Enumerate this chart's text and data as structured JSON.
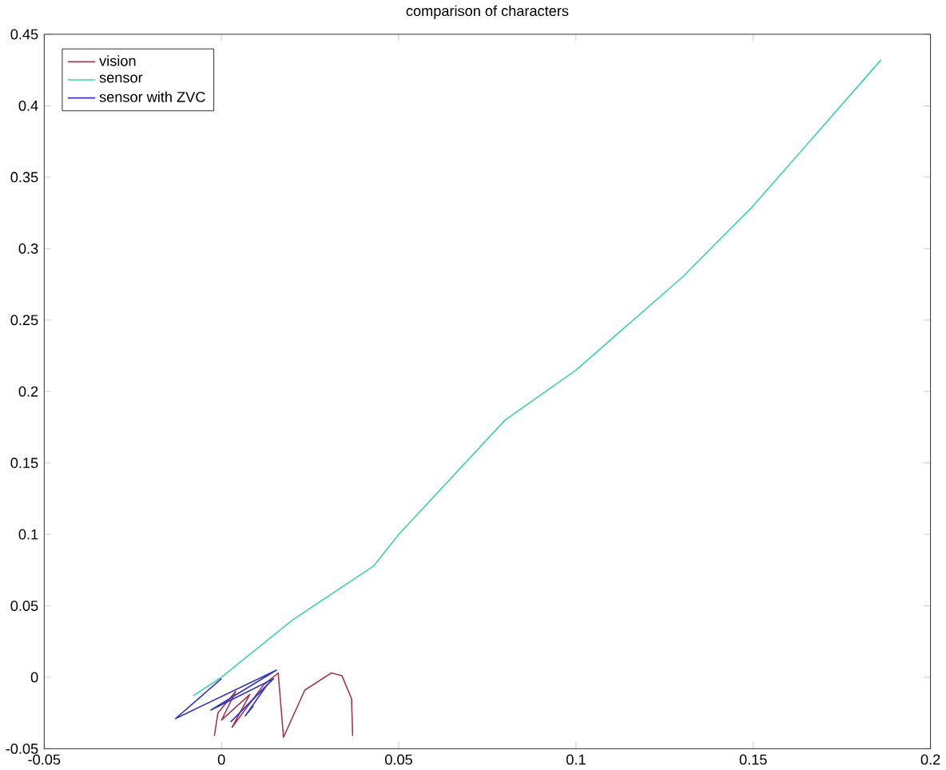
{
  "chart_data": {
    "type": "line",
    "title": "comparison of characters",
    "legend": "top left",
    "grid": false,
    "xlim": [
      -0.05,
      0.2
    ],
    "xticks": [
      -0.05,
      0,
      0.05,
      0.1,
      0.15,
      0.2
    ],
    "ylim": [
      -0.05,
      0.45
    ],
    "yticks": [
      -0.05,
      0,
      0.05,
      0.1,
      0.15,
      0.2,
      0.25,
      0.3,
      0.35,
      0.4,
      0.45
    ],
    "series": [
      {
        "name": "vision",
        "color": "#a03a55",
        "x": [
          -0.002,
          -0.001,
          0.004,
          0.0,
          0.008,
          0.003,
          0.012,
          0.016,
          0.0175,
          0.0235,
          0.031,
          0.034,
          0.0367,
          0.037
        ],
        "values": [
          -0.041,
          -0.025,
          -0.01,
          -0.03,
          -0.012,
          -0.035,
          -0.005,
          0.003,
          -0.042,
          -0.009,
          0.003,
          0.001,
          -0.015,
          -0.041
        ]
      },
      {
        "name": "sensor",
        "color": "#40d0b0",
        "x": [
          -0.008,
          0.0,
          0.02,
          0.043,
          0.05,
          0.08,
          0.1,
          0.13,
          0.15,
          0.186
        ],
        "values": [
          -0.013,
          0.0,
          0.04,
          0.078,
          0.1,
          0.18,
          0.215,
          0.28,
          0.33,
          0.432
        ]
      },
      {
        "name": "sensor with ZVC",
        "color": "#3535c0",
        "x": [
          0.0,
          -0.013,
          0.0155,
          -0.003,
          0.0147,
          0.0027,
          0.013,
          0.0067,
          0.009
        ],
        "values": [
          -0.001,
          -0.029,
          0.005,
          -0.023,
          -0.001,
          -0.031,
          -0.005,
          -0.027,
          -0.02
        ]
      }
    ]
  }
}
